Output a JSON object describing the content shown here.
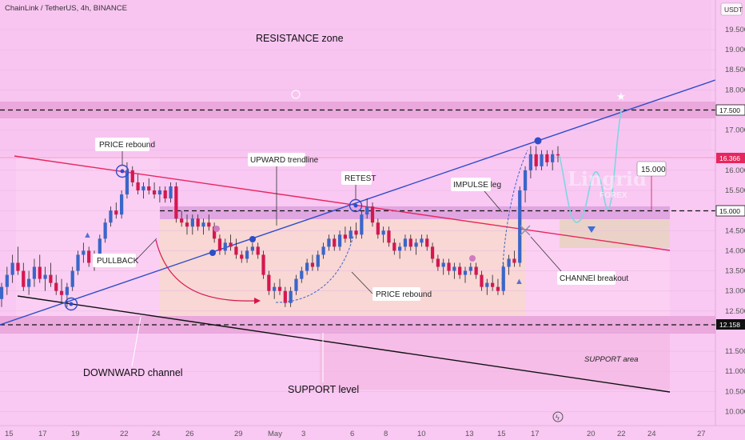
{
  "header": {
    "symbol": "ChainLink / TetherUS, 4h, BINANCE",
    "currency": "USDT"
  },
  "colors": {
    "bull": "#3a66c9",
    "bear": "#d6174e",
    "background": "#f9c8f3",
    "resistance_band": "#e8a4d9",
    "channel_red": "#e8265e",
    "trend_blue": "#2f4dc8",
    "support_black": "#111111",
    "accent_price": "#e8265e"
  },
  "chart_data": {
    "type": "candlestick",
    "title": "ChainLink / TetherUS, 4h, BINANCE",
    "yaxis": {
      "ticks": [
        "19.500",
        "19.000",
        "18.500",
        "18.000",
        "17.500",
        "17.000",
        "16.500",
        "16.000",
        "15.500",
        "15.000",
        "14.500",
        "14.000",
        "13.500",
        "13.000",
        "12.500",
        "12.000",
        "11.500",
        "11.000",
        "10.500",
        "10.000"
      ],
      "range": [
        9.85,
        20.2
      ]
    },
    "xaxis": {
      "ticks": [
        "15",
        "17",
        "19",
        "22",
        "24",
        "26",
        "29",
        "May",
        "3",
        "6",
        "8",
        "10",
        "13",
        "15",
        "17",
        "20",
        "22",
        "24",
        "27"
      ]
    },
    "price_tags": [
      {
        "value": "17.500",
        "style": "outline"
      },
      {
        "value": "16.366",
        "style": "current"
      },
      {
        "value": "15.000",
        "style": "outline"
      },
      {
        "value": "12.158",
        "style": "dark"
      }
    ],
    "levels": [
      {
        "name": "resistance-17.5",
        "value": 17.5,
        "style": "dashed"
      },
      {
        "name": "level-15",
        "value": 15.0,
        "style": "dashed"
      },
      {
        "name": "support-12.158",
        "value": 12.158,
        "style": "dashed"
      }
    ],
    "annotations": {
      "resistance_zone": "RESISTANCE zone",
      "price_rebound_top": "PRICE rebound",
      "upward_trendline": "UPWARD trendline",
      "retest": "RETEST",
      "impulse_leg": "IMPULSE leg",
      "target": "15.000",
      "pullback": "PULLBACK",
      "price_rebound_mid": "PRICE rebound",
      "channel_breakout": "CHANNEl breakout",
      "downward_channel": "DOWNWARD channel",
      "support_level": "SUPPORT level",
      "support_area": "SUPPORT area"
    },
    "watermark": {
      "line1": "Lingrid",
      "line2": "FOREX"
    },
    "candles": [
      [
        12.8,
        13.2,
        12.6,
        13.1
      ],
      [
        13.1,
        13.6,
        12.9,
        13.4
      ],
      [
        13.4,
        13.9,
        13.2,
        13.7
      ],
      [
        13.7,
        14.1,
        13.4,
        13.5
      ],
      [
        13.5,
        13.7,
        13.0,
        13.1
      ],
      [
        13.1,
        13.5,
        12.9,
        13.3
      ],
      [
        13.3,
        13.8,
        13.1,
        13.6
      ],
      [
        13.6,
        13.9,
        13.2,
        13.3
      ],
      [
        13.3,
        13.6,
        13.0,
        13.4
      ],
      [
        13.4,
        13.7,
        13.1,
        13.2
      ],
      [
        13.2,
        13.4,
        12.9,
        13.0
      ],
      [
        13.0,
        13.3,
        12.7,
        12.9
      ],
      [
        12.9,
        13.2,
        12.6,
        13.1
      ],
      [
        13.1,
        13.6,
        13.0,
        13.5
      ],
      [
        13.5,
        14.0,
        13.4,
        13.9
      ],
      [
        13.9,
        14.2,
        13.7,
        14.0
      ],
      [
        14.0,
        14.1,
        13.6,
        13.7
      ],
      [
        13.7,
        14.0,
        13.5,
        13.9
      ],
      [
        13.9,
        14.4,
        13.8,
        14.3
      ],
      [
        14.3,
        14.8,
        14.2,
        14.7
      ],
      [
        14.7,
        15.1,
        14.6,
        15.0
      ],
      [
        15.0,
        15.2,
        14.8,
        14.9
      ],
      [
        14.9,
        15.5,
        14.8,
        15.4
      ],
      [
        15.4,
        16.2,
        15.3,
        16.0
      ],
      [
        16.0,
        16.1,
        15.6,
        15.7
      ],
      [
        15.7,
        15.9,
        15.4,
        15.5
      ],
      [
        15.5,
        15.7,
        15.3,
        15.6
      ],
      [
        15.6,
        15.8,
        15.4,
        15.5
      ],
      [
        15.5,
        15.7,
        15.3,
        15.4
      ],
      [
        15.4,
        15.6,
        15.2,
        15.5
      ],
      [
        15.5,
        15.6,
        15.2,
        15.3
      ],
      [
        15.3,
        15.7,
        15.2,
        15.6
      ],
      [
        15.6,
        15.7,
        14.7,
        14.8
      ],
      [
        14.8,
        15.0,
        14.6,
        14.7
      ],
      [
        14.7,
        14.9,
        14.4,
        14.6
      ],
      [
        14.6,
        14.9,
        14.4,
        14.8
      ],
      [
        14.8,
        14.9,
        14.5,
        14.6
      ],
      [
        14.6,
        14.8,
        14.4,
        14.7
      ],
      [
        14.7,
        14.9,
        14.5,
        14.6
      ],
      [
        14.6,
        14.7,
        14.2,
        14.3
      ],
      [
        14.3,
        14.4,
        13.9,
        14.0
      ],
      [
        14.0,
        14.3,
        13.9,
        14.2
      ],
      [
        14.2,
        14.4,
        14.0,
        14.1
      ],
      [
        14.1,
        14.3,
        13.8,
        13.9
      ],
      [
        13.9,
        14.0,
        13.7,
        13.8
      ],
      [
        13.8,
        14.1,
        13.7,
        14.0
      ],
      [
        14.0,
        14.2,
        13.9,
        14.1
      ],
      [
        14.1,
        14.2,
        13.8,
        13.9
      ],
      [
        13.9,
        14.0,
        13.3,
        13.4
      ],
      [
        13.4,
        13.5,
        12.9,
        13.0
      ],
      [
        13.0,
        13.2,
        12.8,
        13.1
      ],
      [
        13.1,
        13.3,
        12.9,
        13.0
      ],
      [
        13.0,
        13.1,
        12.6,
        12.7
      ],
      [
        12.7,
        13.1,
        12.6,
        13.0
      ],
      [
        13.0,
        13.4,
        12.9,
        13.3
      ],
      [
        13.3,
        13.6,
        13.2,
        13.5
      ],
      [
        13.5,
        13.8,
        13.4,
        13.7
      ],
      [
        13.7,
        13.9,
        13.5,
        13.6
      ],
      [
        13.6,
        14.0,
        13.5,
        13.9
      ],
      [
        13.9,
        14.2,
        13.8,
        14.1
      ],
      [
        14.1,
        14.4,
        14.0,
        14.3
      ],
      [
        14.3,
        14.4,
        14.0,
        14.1
      ],
      [
        14.1,
        14.5,
        14.0,
        14.4
      ],
      [
        14.4,
        14.6,
        14.2,
        14.3
      ],
      [
        14.3,
        14.6,
        14.2,
        14.5
      ],
      [
        14.5,
        14.7,
        14.3,
        14.4
      ],
      [
        14.4,
        15.0,
        14.3,
        14.9
      ],
      [
        14.9,
        15.3,
        14.8,
        15.1
      ],
      [
        15.1,
        15.2,
        14.6,
        14.7
      ],
      [
        14.7,
        14.8,
        14.3,
        14.4
      ],
      [
        14.4,
        14.6,
        14.2,
        14.5
      ],
      [
        14.5,
        14.6,
        14.1,
        14.2
      ],
      [
        14.2,
        14.3,
        13.9,
        14.0
      ],
      [
        14.0,
        14.2,
        13.8,
        14.1
      ],
      [
        14.1,
        14.4,
        14.0,
        14.3
      ],
      [
        14.3,
        14.4,
        14.0,
        14.1
      ],
      [
        14.1,
        14.3,
        13.9,
        14.2
      ],
      [
        14.2,
        14.4,
        14.1,
        14.3
      ],
      [
        14.3,
        14.4,
        14.0,
        14.1
      ],
      [
        14.1,
        14.2,
        13.7,
        13.8
      ],
      [
        13.8,
        13.9,
        13.5,
        13.6
      ],
      [
        13.6,
        13.8,
        13.4,
        13.7
      ],
      [
        13.7,
        13.8,
        13.4,
        13.5
      ],
      [
        13.5,
        13.7,
        13.3,
        13.6
      ],
      [
        13.6,
        13.7,
        13.3,
        13.4
      ],
      [
        13.4,
        13.6,
        13.2,
        13.5
      ],
      [
        13.5,
        13.7,
        13.4,
        13.6
      ],
      [
        13.6,
        13.7,
        13.3,
        13.4
      ],
      [
        13.4,
        13.5,
        13.0,
        13.1
      ],
      [
        13.1,
        13.3,
        12.9,
        13.2
      ],
      [
        13.2,
        13.4,
        13.0,
        13.1
      ],
      [
        13.1,
        13.3,
        12.9,
        13.0
      ],
      [
        13.0,
        13.7,
        12.9,
        13.6
      ],
      [
        13.6,
        13.9,
        13.4,
        13.8
      ],
      [
        13.8,
        14.0,
        13.6,
        13.7
      ],
      [
        13.7,
        15.6,
        13.6,
        15.5
      ],
      [
        15.5,
        16.1,
        15.2,
        16.0
      ],
      [
        16.0,
        16.6,
        15.8,
        16.4
      ],
      [
        16.4,
        16.6,
        16.0,
        16.1
      ],
      [
        16.1,
        16.5,
        16.0,
        16.4
      ],
      [
        16.4,
        16.5,
        16.1,
        16.2
      ],
      [
        16.2,
        16.5,
        16.0,
        16.4
      ],
      [
        16.4,
        16.6,
        16.2,
        16.37
      ]
    ]
  }
}
